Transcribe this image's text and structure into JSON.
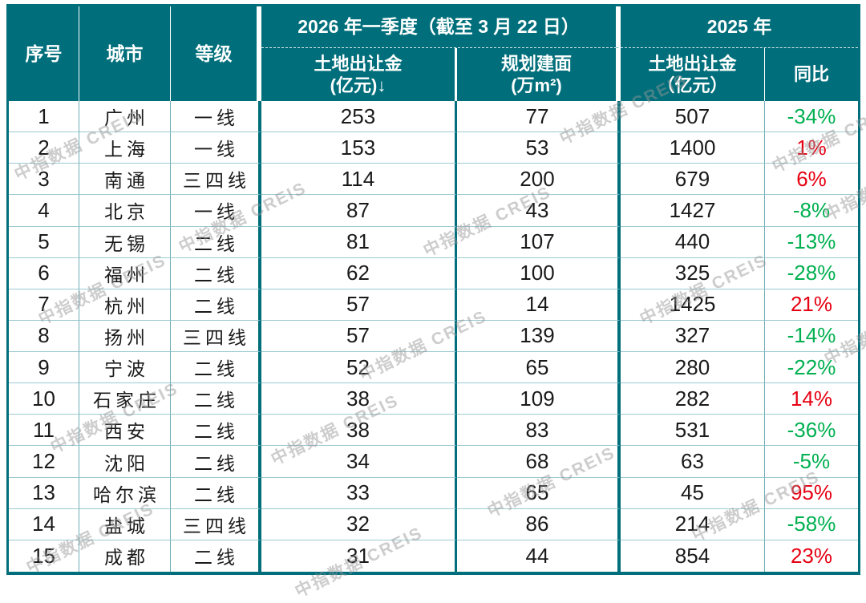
{
  "watermark": {
    "text": "中指数据 CREIS"
  },
  "colors": {
    "header_teal": "#006F7B",
    "yoy_negative_green": "#00B050",
    "yoy_positive_red": "#E60012"
  },
  "chart_data": {
    "type": "table",
    "header": {
      "no": "序号",
      "city": "城市",
      "tier": "等级",
      "group_2026": "2026 年一季度（截至 3 月 22 日）",
      "group_2025": "2025 年",
      "sub_land_2026_line1": "土地出让金",
      "sub_land_2026_line2": "(亿元)↓",
      "sub_area_line1": "规划建面",
      "sub_area_line2": "(万m²)",
      "sub_land_2025_line1": "土地出让金",
      "sub_land_2025_line2": "（亿元）",
      "sub_yoy": "同比"
    },
    "rows": [
      {
        "no": "1",
        "city": "广州",
        "tier": "一线",
        "land_2026": "253",
        "area": "77",
        "land_2025": "507",
        "yoy": "-34%"
      },
      {
        "no": "2",
        "city": "上海",
        "tier": "一线",
        "land_2026": "153",
        "area": "53",
        "land_2025": "1400",
        "yoy": "1%"
      },
      {
        "no": "3",
        "city": "南通",
        "tier": "三四线",
        "land_2026": "114",
        "area": "200",
        "land_2025": "679",
        "yoy": "6%"
      },
      {
        "no": "4",
        "city": "北京",
        "tier": "一线",
        "land_2026": "87",
        "area": "43",
        "land_2025": "1427",
        "yoy": "-8%"
      },
      {
        "no": "5",
        "city": "无锡",
        "tier": "二线",
        "land_2026": "81",
        "area": "107",
        "land_2025": "440",
        "yoy": "-13%"
      },
      {
        "no": "6",
        "city": "福州",
        "tier": "二线",
        "land_2026": "62",
        "area": "100",
        "land_2025": "325",
        "yoy": "-28%"
      },
      {
        "no": "7",
        "city": "杭州",
        "tier": "二线",
        "land_2026": "57",
        "area": "14",
        "land_2025": "1425",
        "yoy": "21%"
      },
      {
        "no": "8",
        "city": "扬州",
        "tier": "三四线",
        "land_2026": "57",
        "area": "139",
        "land_2025": "327",
        "yoy": "-14%"
      },
      {
        "no": "9",
        "city": "宁波",
        "tier": "二线",
        "land_2026": "52",
        "area": "65",
        "land_2025": "280",
        "yoy": "-22%"
      },
      {
        "no": "10",
        "city": "石家庄",
        "tier": "二线",
        "land_2026": "38",
        "area": "109",
        "land_2025": "282",
        "yoy": "14%"
      },
      {
        "no": "11",
        "city": "西安",
        "tier": "二线",
        "land_2026": "38",
        "area": "83",
        "land_2025": "531",
        "yoy": "-36%"
      },
      {
        "no": "12",
        "city": "沈阳",
        "tier": "二线",
        "land_2026": "34",
        "area": "68",
        "land_2025": "63",
        "yoy": "-5%"
      },
      {
        "no": "13",
        "city": "哈尔滨",
        "tier": "二线",
        "land_2026": "33",
        "area": "65",
        "land_2025": "45",
        "yoy": "95%"
      },
      {
        "no": "14",
        "city": "盐城",
        "tier": "三四线",
        "land_2026": "32",
        "area": "86",
        "land_2025": "214",
        "yoy": "-58%"
      },
      {
        "no": "15",
        "city": "成都",
        "tier": "二线",
        "land_2026": "31",
        "area": "44",
        "land_2025": "854",
        "yoy": "23%"
      }
    ]
  }
}
